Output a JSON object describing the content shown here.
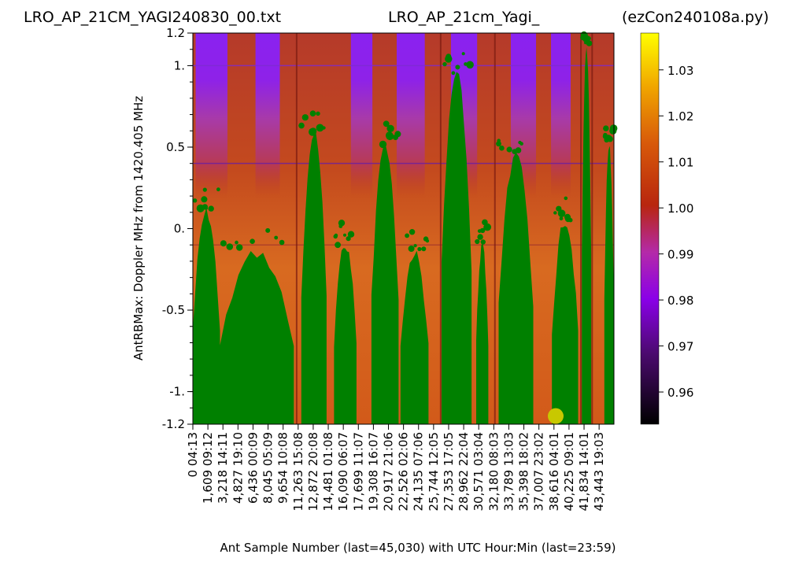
{
  "chart_data": {
    "type": "heatmap",
    "title_left": "LRO_AP_21CM_YAGI240830_00.txt",
    "title_center": "LRO_AP_21cm_Yagi_",
    "title_right": "(ezCon240108a.py)",
    "xlabel": "Ant Sample Number (last=45,030) with UTC Hour:Min (last=23:59)",
    "ylabel": "AntRBMax:  Doppler MHz from 1420.405 MHz",
    "xlim": [
      0,
      45030
    ],
    "ylim": [
      -1.2,
      1.2
    ],
    "y_ticks": [
      {
        "value": 1.2,
        "label": "1.2"
      },
      {
        "value": 1.0,
        "label": "1."
      },
      {
        "value": 0.5,
        "label": "0.5"
      },
      {
        "value": 0.0,
        "label": "0."
      },
      {
        "value": -0.5,
        "label": "-0.5"
      },
      {
        "value": -1.0,
        "label": "-1."
      },
      {
        "value": -1.2,
        "label": "-1.2"
      }
    ],
    "x_ticks": [
      {
        "sample": 0,
        "label": "0",
        "utc": "04:13"
      },
      {
        "sample": 1609,
        "label": "1,609",
        "utc": "09:12"
      },
      {
        "sample": 3218,
        "label": "3,218",
        "utc": "14:11"
      },
      {
        "sample": 4827,
        "label": "4,827",
        "utc": "19:10"
      },
      {
        "sample": 6436,
        "label": "6,436",
        "utc": "00:09"
      },
      {
        "sample": 8045,
        "label": "8,045",
        "utc": "05:09"
      },
      {
        "sample": 9654,
        "label": "9,654",
        "utc": "10:08"
      },
      {
        "sample": 11263,
        "label": "11,263",
        "utc": "15:08"
      },
      {
        "sample": 12872,
        "label": "12,872",
        "utc": "20:08"
      },
      {
        "sample": 14481,
        "label": "14,481",
        "utc": "01:08"
      },
      {
        "sample": 16090,
        "label": "16,090",
        "utc": "06:07"
      },
      {
        "sample": 17699,
        "label": "17,699",
        "utc": "11:07"
      },
      {
        "sample": 19308,
        "label": "19,308",
        "utc": "16:07"
      },
      {
        "sample": 20917,
        "label": "20,917",
        "utc": "21:06"
      },
      {
        "sample": 22526,
        "label": "22,526",
        "utc": "02:06"
      },
      {
        "sample": 24135,
        "label": "24,135",
        "utc": "07:06"
      },
      {
        "sample": 25744,
        "label": "25,744",
        "utc": "12:05"
      },
      {
        "sample": 27353,
        "label": "27,353",
        "utc": "17:05"
      },
      {
        "sample": 28962,
        "label": "28,962",
        "utc": "22:04"
      },
      {
        "sample": 30571,
        "label": "30,571",
        "utc": "03:04"
      },
      {
        "sample": 32180,
        "label": "32,180",
        "utc": "08:03"
      },
      {
        "sample": 33789,
        "label": "33,789",
        "utc": "13:03"
      },
      {
        "sample": 35398,
        "label": "35,398",
        "utc": "18:02"
      },
      {
        "sample": 37007,
        "label": "37,007",
        "utc": "23:02"
      },
      {
        "sample": 38616,
        "label": "38,616",
        "utc": "04:01"
      },
      {
        "sample": 40225,
        "label": "40,225",
        "utc": "09:01"
      },
      {
        "sample": 41834,
        "label": "41,834",
        "utc": "14:01"
      },
      {
        "sample": 43443,
        "label": "43,443",
        "utc": "19:03"
      }
    ],
    "colorbar": {
      "range": [
        0.953,
        1.038
      ],
      "ticks": [
        {
          "value": 1.03,
          "label": "1.03"
        },
        {
          "value": 1.02,
          "label": "1.02"
        },
        {
          "value": 1.01,
          "label": "1.01"
        },
        {
          "value": 1.0,
          "label": "1.00"
        },
        {
          "value": 0.99,
          "label": "0.99"
        },
        {
          "value": 0.98,
          "label": "0.98"
        },
        {
          "value": 0.97,
          "label": "0.97"
        },
        {
          "value": 0.96,
          "label": "0.96"
        }
      ],
      "colormap": "gnuplot"
    },
    "overlay_color": "#008000",
    "marker": {
      "sample": 38800,
      "doppler": -1.15,
      "color": "#c8c800"
    },
    "background_color": "#c84a1a",
    "purple_bands": [
      {
        "start": 300,
        "end": 3700
      },
      {
        "start": 6700,
        "end": 9300
      },
      {
        "start": 16900,
        "end": 19200
      },
      {
        "start": 21800,
        "end": 24800
      },
      {
        "start": 27600,
        "end": 30400
      },
      {
        "start": 34000,
        "end": 36700
      },
      {
        "start": 38300,
        "end": 40400
      }
    ],
    "green_columns": [
      {
        "start": 0,
        "end": 2900,
        "top": 0.1
      },
      {
        "start": 2900,
        "end": 10800,
        "top": -0.15
      },
      {
        "start": 11600,
        "end": 14300,
        "top": 0.58
      },
      {
        "start": 15100,
        "end": 17500,
        "top": -0.1
      },
      {
        "start": 19100,
        "end": 22000,
        "top": 0.5
      },
      {
        "start": 22200,
        "end": 25200,
        "top": -0.15
      },
      {
        "start": 26600,
        "end": 29800,
        "top": 0.95
      },
      {
        "start": 30300,
        "end": 31600,
        "top": -0.1
      },
      {
        "start": 32700,
        "end": 36400,
        "top": 0.45
      },
      {
        "start": 38400,
        "end": 41200,
        "top": 0.05
      },
      {
        "start": 41600,
        "end": 42600,
        "top": 1.1
      },
      {
        "start": 44000,
        "end": 45030,
        "top": 0.5
      }
    ],
    "dark_vertical_lines": [
      11100,
      26500,
      32300,
      41500,
      42700
    ],
    "horizontal_lines": [
      {
        "doppler": 0.4,
        "color": "#6a1fa0"
      },
      {
        "doppler": -0.1,
        "color": "#a83a2a"
      },
      {
        "doppler": 1.0,
        "color": "#7d2bd0"
      }
    ]
  }
}
